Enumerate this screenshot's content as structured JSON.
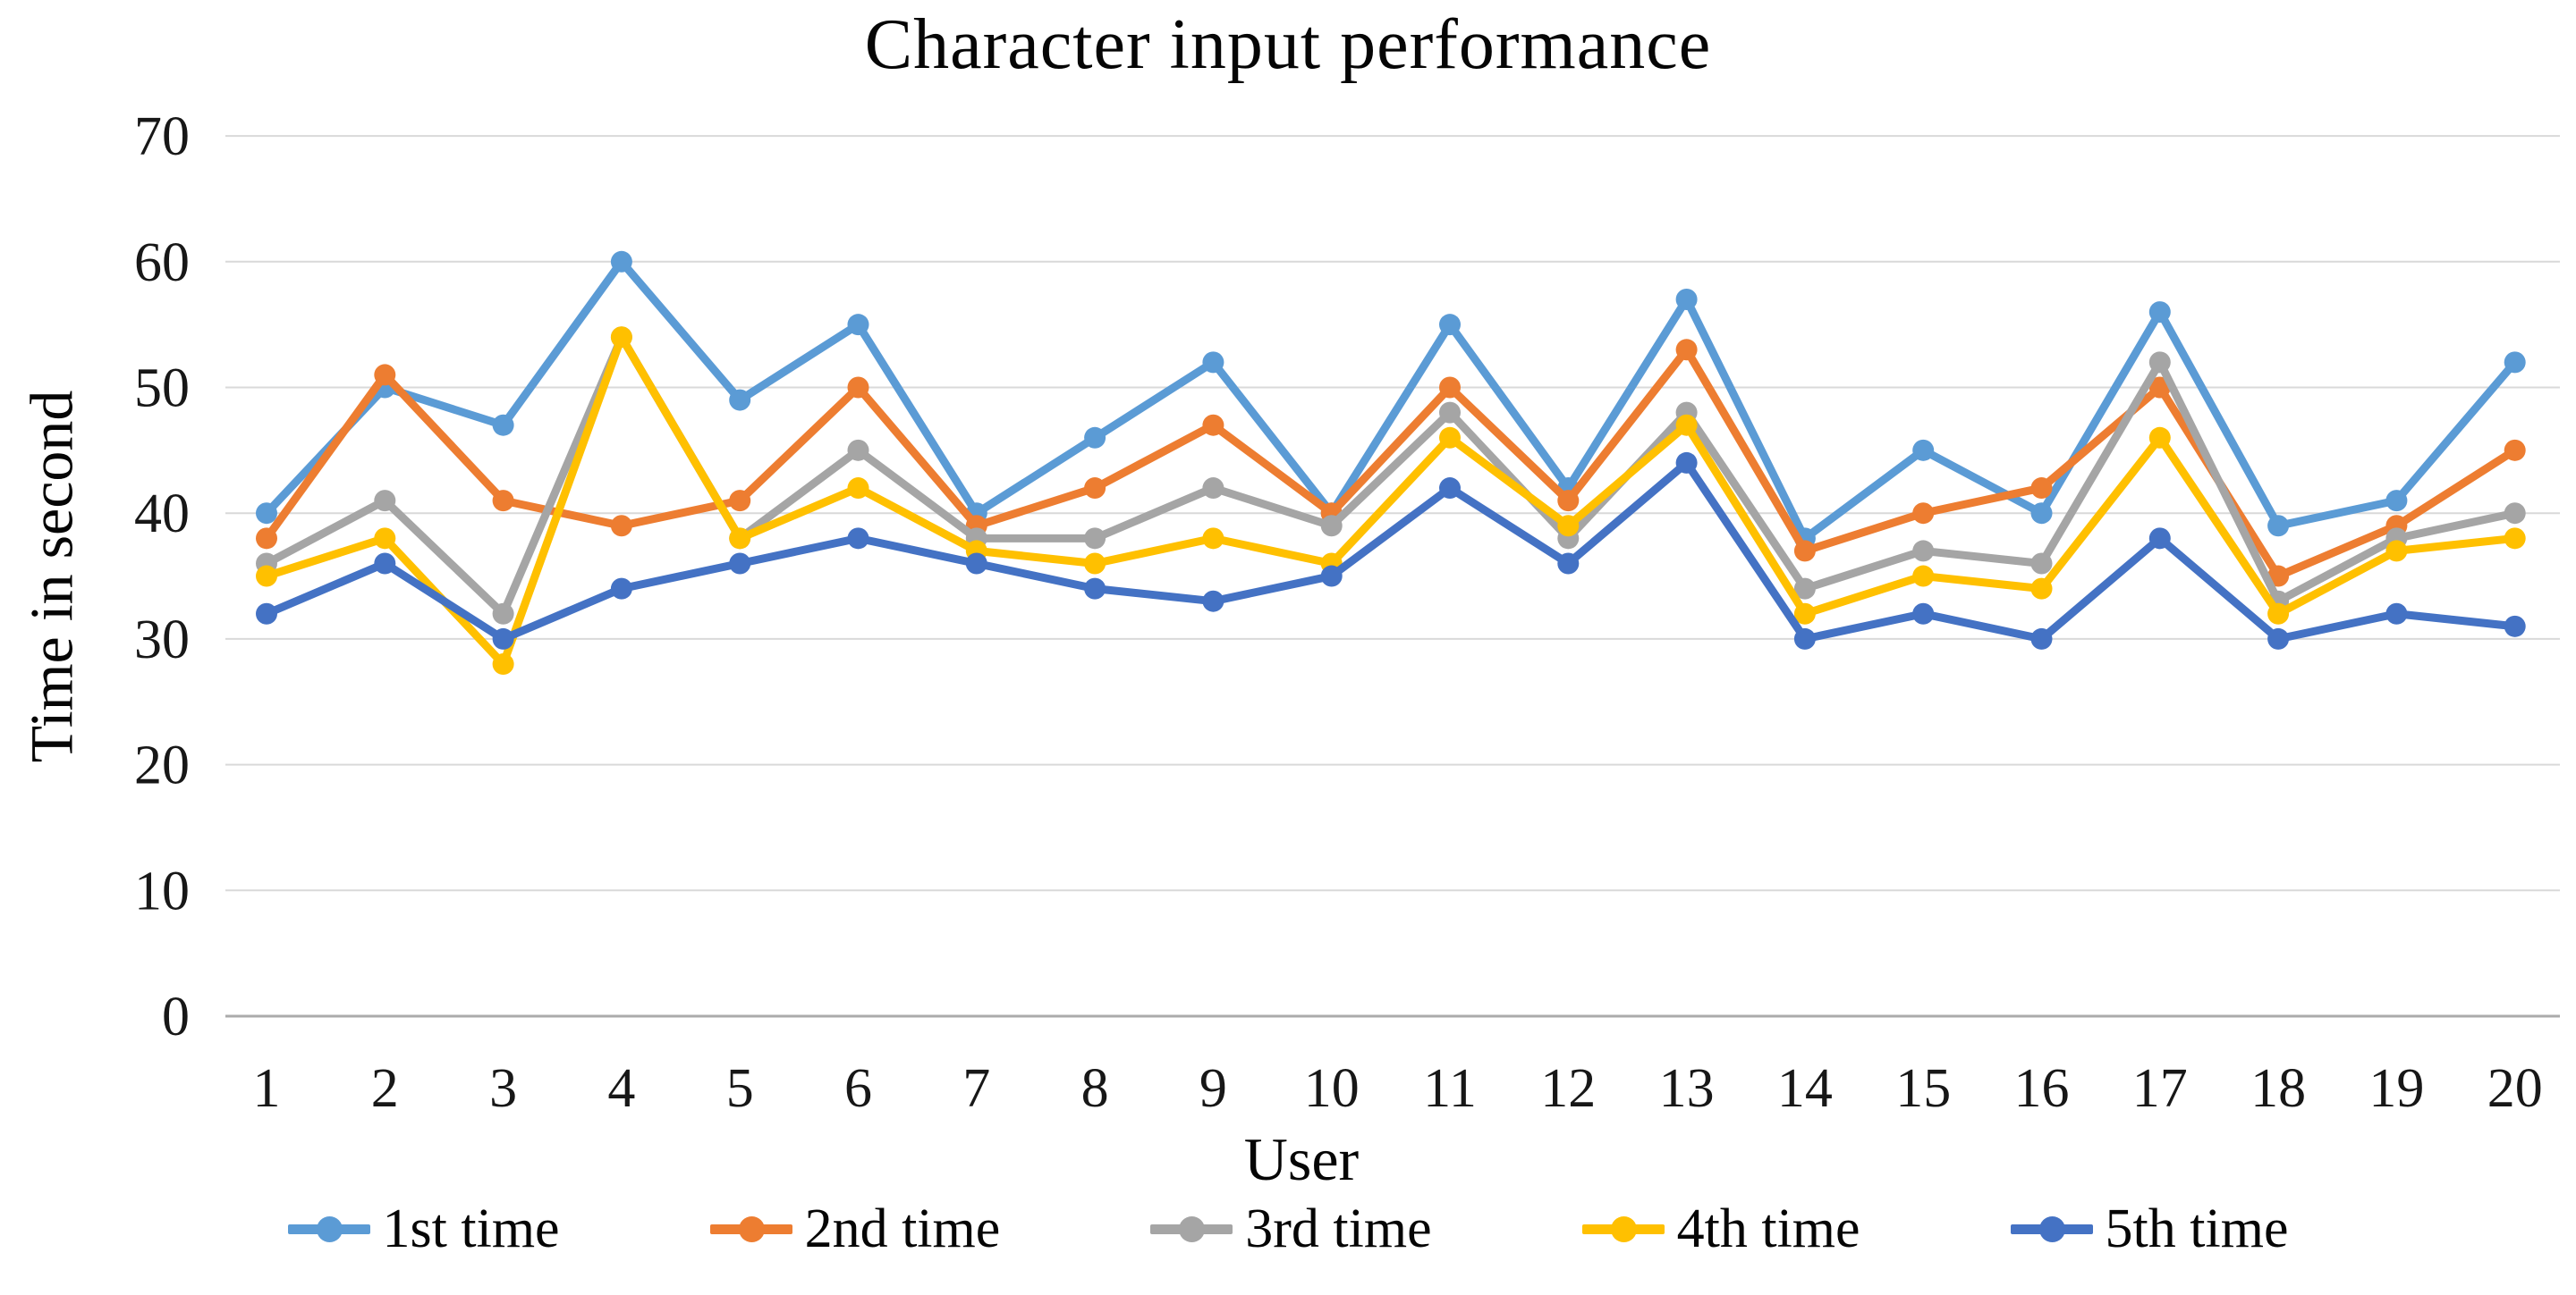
{
  "title": "Character input performance",
  "y_axis": {
    "title": "Time in second",
    "ticks": [
      "0",
      "10",
      "20",
      "30",
      "40",
      "50",
      "60",
      "70"
    ]
  },
  "x_axis": {
    "title": "User",
    "ticks": [
      "1",
      "2",
      "3",
      "4",
      "5",
      "6",
      "7",
      "8",
      "9",
      "10",
      "11",
      "12",
      "13",
      "14",
      "15",
      "16",
      "17",
      "18",
      "19",
      "20"
    ]
  },
  "colors": {
    "gridline": "#D9D9D9",
    "baseline": "#ABABAB",
    "series_1": "#5B9BD5",
    "series_2": "#ED7D31",
    "series_3": "#A5A5A5",
    "series_4": "#FFC000",
    "series_5": "#4472C4"
  },
  "chart_data": {
    "type": "line",
    "title": "Character input performance",
    "xlabel": "User",
    "ylabel": "Time in second",
    "ylim": [
      0,
      70
    ],
    "y_tick_step": 10,
    "grid": true,
    "legend_position": "bottom",
    "marker": "circle",
    "categories": [
      1,
      2,
      3,
      4,
      5,
      6,
      7,
      8,
      9,
      10,
      11,
      12,
      13,
      14,
      15,
      16,
      17,
      18,
      19,
      20
    ],
    "series": [
      {
        "name": "1st time",
        "color": "#5B9BD5",
        "values": [
          40,
          50,
          47,
          60,
          49,
          55,
          40,
          46,
          52,
          40,
          55,
          42,
          57,
          38,
          45,
          40,
          56,
          39,
          41,
          52
        ]
      },
      {
        "name": "2nd time",
        "color": "#ED7D31",
        "values": [
          38,
          51,
          41,
          39,
          41,
          50,
          39,
          42,
          47,
          40,
          50,
          41,
          53,
          37,
          40,
          42,
          50,
          35,
          39,
          45
        ]
      },
      {
        "name": "3rd time",
        "color": "#A5A5A5",
        "values": [
          36,
          41,
          32,
          54,
          38,
          45,
          38,
          38,
          42,
          39,
          48,
          38,
          48,
          34,
          37,
          36,
          52,
          33,
          38,
          40
        ]
      },
      {
        "name": "4th time",
        "color": "#FFC000",
        "values": [
          35,
          38,
          28,
          54,
          38,
          42,
          37,
          36,
          38,
          36,
          46,
          39,
          47,
          32,
          35,
          34,
          46,
          32,
          37,
          38
        ]
      },
      {
        "name": "5th time",
        "color": "#4472C4",
        "values": [
          32,
          36,
          30,
          34,
          36,
          38,
          36,
          34,
          33,
          35,
          42,
          36,
          44,
          30,
          32,
          30,
          38,
          30,
          32,
          31
        ]
      }
    ]
  }
}
